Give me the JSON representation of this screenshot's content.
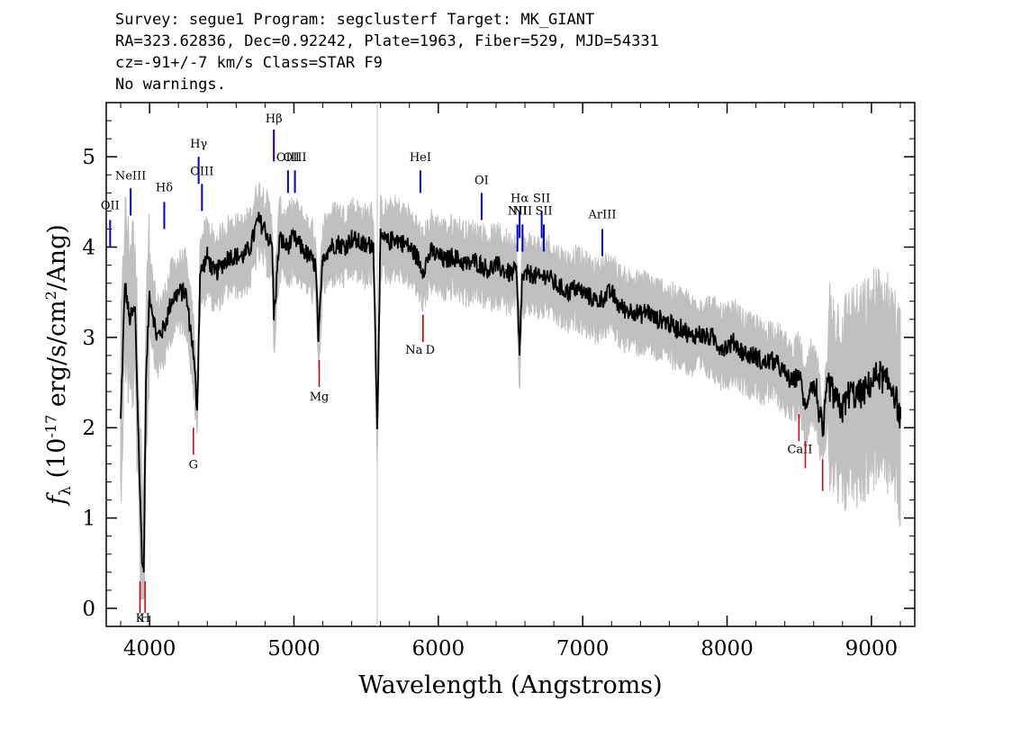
{
  "header": {
    "line1": "Survey: segue1 Program: segclusterf Target: MK_GIANT",
    "line2": "RA=323.62836, Dec=0.92242, Plate=1963, Fiber=529, MJD=54331",
    "line3": "cz=-91+/-7 km/s Class=STAR F9",
    "line4": "No warnings."
  },
  "colors": {
    "flux": "#000000",
    "error_band": "#c0c0c0",
    "emission_marker": "#0000cc",
    "absorption_marker": "#cc0000",
    "sky_line": "#c0c0c0"
  },
  "chart_data": {
    "type": "line",
    "xlabel": "Wavelength (Angstroms)",
    "ylabel": "f_λ (10^-17 erg/s/cm^2/Ang)",
    "xlim": [
      3700,
      9300
    ],
    "ylim": [
      -0.2,
      5.6
    ],
    "xticks": [
      4000,
      5000,
      6000,
      7000,
      8000,
      9000
    ],
    "yticks": [
      0,
      1,
      2,
      3,
      4,
      5
    ],
    "grid": false,
    "sky_line_x": 5577,
    "series": [
      {
        "kind": "flux",
        "x": [
          3800,
          3830,
          3860,
          3900,
          3935,
          3950,
          3960,
          3975,
          4000,
          4050,
          4100,
          4150,
          4200,
          4250,
          4300,
          4330,
          4350,
          4400,
          4450,
          4500,
          4550,
          4600,
          4650,
          4700,
          4750,
          4800,
          4850,
          4861,
          4900,
          4950,
          5000,
          5050,
          5100,
          5150,
          5170,
          5200,
          5250,
          5300,
          5350,
          5400,
          5450,
          5500,
          5550,
          5577,
          5600,
          5650,
          5700,
          5750,
          5800,
          5850,
          5893,
          5950,
          6000,
          6050,
          6100,
          6150,
          6200,
          6250,
          6300,
          6350,
          6400,
          6450,
          6500,
          6540,
          6563,
          6580,
          6620,
          6650,
          6700,
          6750,
          6800,
          6850,
          6900,
          6950,
          7000,
          7050,
          7100,
          7150,
          7200,
          7250,
          7300,
          7350,
          7400,
          7450,
          7500,
          7550,
          7600,
          7650,
          7700,
          7750,
          7800,
          7850,
          7900,
          7950,
          8000,
          8050,
          8100,
          8150,
          8200,
          8250,
          8300,
          8350,
          8400,
          8450,
          8500,
          8542,
          8580,
          8620,
          8662,
          8700,
          8750,
          8800,
          8850,
          8900,
          8950,
          9000,
          9050,
          9100,
          9150,
          9200
        ],
        "y": [
          2.1,
          3.6,
          3.2,
          3.3,
          1.2,
          0.5,
          0.4,
          2.5,
          3.5,
          3.0,
          3.1,
          3.4,
          3.5,
          3.5,
          2.9,
          2.2,
          3.7,
          3.9,
          3.7,
          3.8,
          3.9,
          3.9,
          3.9,
          4.0,
          4.3,
          4.2,
          4.0,
          3.2,
          4.1,
          4.0,
          4.1,
          4.0,
          3.9,
          3.8,
          2.95,
          3.9,
          4.0,
          4.05,
          4.0,
          4.1,
          4.05,
          4.0,
          4.05,
          2.0,
          4.1,
          4.05,
          4.1,
          4.05,
          4.0,
          3.9,
          3.75,
          3.95,
          3.9,
          3.85,
          3.9,
          3.85,
          3.8,
          3.85,
          3.8,
          3.75,
          3.8,
          3.75,
          3.7,
          3.75,
          2.8,
          3.65,
          3.7,
          3.7,
          3.65,
          3.7,
          3.6,
          3.55,
          3.5,
          3.55,
          3.5,
          3.45,
          3.4,
          3.45,
          3.5,
          3.35,
          3.3,
          3.3,
          3.25,
          3.3,
          3.2,
          3.2,
          3.15,
          3.1,
          3.1,
          3.0,
          3.05,
          3.0,
          3.0,
          2.9,
          2.9,
          2.95,
          2.85,
          2.8,
          2.8,
          2.7,
          2.75,
          2.7,
          2.6,
          2.5,
          2.6,
          2.2,
          2.5,
          2.4,
          1.9,
          2.5,
          2.3,
          2.2,
          2.4,
          2.35,
          2.4,
          2.5,
          2.6,
          2.5,
          2.45,
          2.1
        ]
      }
    ],
    "emission_lines": [
      {
        "label": "OII",
        "x": 3727,
        "y_bottom": 4.0,
        "y_top": 4.3,
        "label_y": 4.42
      },
      {
        "label": "NeIII",
        "x": 3869,
        "y_bottom": 4.35,
        "y_top": 4.65,
        "label_y": 4.75
      },
      {
        "label": "Hδ",
        "x": 4102,
        "y_bottom": 4.2,
        "y_top": 4.5,
        "label_y": 4.62
      },
      {
        "label": "Hγ",
        "x": 4340,
        "y_bottom": 4.7,
        "y_top": 5.0,
        "label_y": 5.1
      },
      {
        "label": "OIII",
        "x": 4363,
        "y_bottom": 4.4,
        "y_top": 4.7,
        "label_y": 4.8
      },
      {
        "label": "Hβ",
        "x": 4861,
        "y_bottom": 4.95,
        "y_top": 5.3,
        "label_y": 5.38
      },
      {
        "label": "OIII",
        "x": 4959,
        "y_bottom": 4.6,
        "y_top": 4.85,
        "label_y": 4.95
      },
      {
        "label": "OIII",
        "x": 5007,
        "y_bottom": 4.6,
        "y_top": 4.85,
        "label_y": 4.95
      },
      {
        "label": "HeI",
        "x": 5876,
        "y_bottom": 4.6,
        "y_top": 4.85,
        "label_y": 4.95
      },
      {
        "label": "OI",
        "x": 6300,
        "y_bottom": 4.3,
        "y_top": 4.6,
        "label_y": 4.7
      },
      {
        "label": "NII",
        "x": 6548,
        "y_bottom": 3.95,
        "y_top": 4.25,
        "label_y": 4.36
      },
      {
        "label": "Hα",
        "x": 6563,
        "y_bottom": 4.1,
        "y_top": 4.4,
        "label_y": 4.5
      },
      {
        "label": "NII",
        "x": 6583,
        "y_bottom": 3.95,
        "y_top": 4.25,
        "label_y": 4.36
      },
      {
        "label": "SII",
        "x": 6716,
        "y_bottom": 4.1,
        "y_top": 4.4,
        "label_y": 4.5
      },
      {
        "label": "SII",
        "x": 6731,
        "y_bottom": 3.95,
        "y_top": 4.25,
        "label_y": 4.36
      },
      {
        "label": "ArIII",
        "x": 7136,
        "y_bottom": 3.9,
        "y_top": 4.2,
        "label_y": 4.32
      }
    ],
    "absorption_lines": [
      {
        "label": "K",
        "x": 3934,
        "y_top": 0.3,
        "y_bottom": -0.05,
        "label_y": -0.15
      },
      {
        "label": "H",
        "x": 3969,
        "y_top": 0.3,
        "y_bottom": -0.05,
        "label_y": -0.15
      },
      {
        "label": "G",
        "x": 4304,
        "y_top": 2.0,
        "y_bottom": 1.7,
        "label_y": 1.55
      },
      {
        "label": "Mg",
        "x": 5175,
        "y_top": 2.75,
        "y_bottom": 2.45,
        "label_y": 2.3
      },
      {
        "label": "Na",
        "x": 5894,
        "y_top": 3.25,
        "y_bottom": 2.95,
        "label_y": 2.82
      },
      {
        "label": "D",
        "x": 5894,
        "y_top": 3.25,
        "y_bottom": 2.95,
        "label_y": 2.82
      },
      {
        "label": "CaII",
        "x": 8498,
        "y_top": 2.15,
        "y_bottom": 1.85,
        "label_y": 1.72
      },
      {
        "label": "CaII",
        "x": 8542,
        "y_top": 1.85,
        "y_bottom": 1.55,
        "label_y": 1.72
      },
      {
        "label": "CaII",
        "x": 8662,
        "y_top": 1.65,
        "y_bottom": 1.3,
        "label_y": 1.72
      }
    ]
  }
}
